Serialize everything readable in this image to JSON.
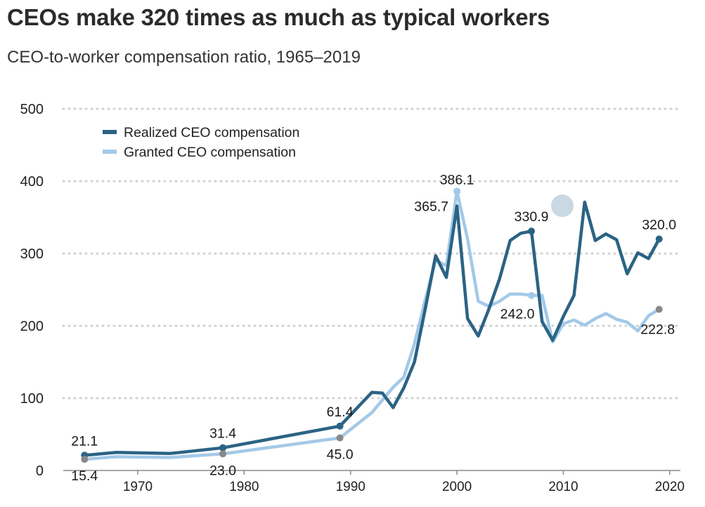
{
  "title": "CEOs make 320 times as much as typical workers",
  "subtitle": "CEO-to-worker compensation ratio, 1965–2019",
  "chart_data": {
    "type": "line",
    "ylim": [
      0,
      500
    ],
    "xlim": [
      1963,
      2021
    ],
    "y_ticks": [
      0,
      100,
      200,
      300,
      400,
      500
    ],
    "x_ticks": [
      1970,
      1980,
      1990,
      2000,
      2010,
      2020
    ],
    "grid": "horizontal dotted",
    "legend_position": "top-left",
    "colors": {
      "realized": "#2b6384",
      "granted": "#a3c9e8",
      "marker_gray": "#888888"
    },
    "series": [
      {
        "key": "realized",
        "name": "Realized CEO compensation",
        "points": [
          [
            1965,
            21.1
          ],
          [
            1968,
            25
          ],
          [
            1973,
            23.5
          ],
          [
            1978,
            31.4
          ],
          [
            1989,
            61.4
          ],
          [
            1992,
            108
          ],
          [
            1993,
            107
          ],
          [
            1994,
            87
          ],
          [
            1995,
            114
          ],
          [
            1996,
            150
          ],
          [
            1997,
            222
          ],
          [
            1998,
            297
          ],
          [
            1999,
            267
          ],
          [
            2000,
            365.7
          ],
          [
            2001,
            210
          ],
          [
            2002,
            186
          ],
          [
            2003,
            223
          ],
          [
            2004,
            265
          ],
          [
            2005,
            318
          ],
          [
            2006,
            328
          ],
          [
            2007,
            330.9
          ],
          [
            2008,
            206
          ],
          [
            2009,
            180
          ],
          [
            2010,
            213
          ],
          [
            2011,
            242
          ],
          [
            2012,
            371
          ],
          [
            2013,
            318
          ],
          [
            2014,
            327
          ],
          [
            2015,
            319
          ],
          [
            2016,
            272
          ],
          [
            2017,
            301
          ],
          [
            2018,
            293
          ],
          [
            2019,
            320.0
          ]
        ]
      },
      {
        "key": "granted",
        "name": "Granted CEO compensation",
        "points": [
          [
            1965,
            15.4
          ],
          [
            1968,
            19
          ],
          [
            1973,
            18
          ],
          [
            1978,
            23.0
          ],
          [
            1989,
            45.0
          ],
          [
            1992,
            80
          ],
          [
            1994,
            115
          ],
          [
            1995,
            129
          ],
          [
            1996,
            175
          ],
          [
            1997,
            235
          ],
          [
            1998,
            291
          ],
          [
            1999,
            283
          ],
          [
            2000,
            386.1
          ],
          [
            2001,
            320
          ],
          [
            2002,
            234
          ],
          [
            2003,
            227
          ],
          [
            2004,
            234
          ],
          [
            2005,
            244
          ],
          [
            2006,
            244
          ],
          [
            2007,
            242.0
          ],
          [
            2008,
            242
          ],
          [
            2009,
            178
          ],
          [
            2010,
            203
          ],
          [
            2011,
            208
          ],
          [
            2012,
            201
          ],
          [
            2013,
            210
          ],
          [
            2014,
            217
          ],
          [
            2015,
            209
          ],
          [
            2016,
            205
          ],
          [
            2017,
            193
          ],
          [
            2018,
            214
          ],
          [
            2019,
            222.8
          ]
        ]
      }
    ],
    "annotations": [
      {
        "x": 1965,
        "y": 21.1,
        "text": "21.1",
        "series": "realized",
        "marker": true,
        "pos": "above"
      },
      {
        "x": 1978,
        "y": 31.4,
        "text": "31.4",
        "series": "realized",
        "marker": true,
        "pos": "above"
      },
      {
        "x": 1989,
        "y": 61.4,
        "text": "61.4",
        "series": "realized",
        "marker": true,
        "pos": "above"
      },
      {
        "x": 2000,
        "y": 365.7,
        "text": "365.7",
        "series": "realized",
        "marker": false,
        "pos": "left"
      },
      {
        "x": 2007,
        "y": 330.9,
        "text": "330.9",
        "series": "realized",
        "marker": true,
        "pos": "above"
      },
      {
        "x": 2019,
        "y": 320.0,
        "text": "320.0",
        "series": "realized",
        "marker": true,
        "pos": "above"
      },
      {
        "x": 1965,
        "y": 15.4,
        "text": "15.4",
        "series": "granted",
        "marker": true,
        "pos": "below"
      },
      {
        "x": 1978,
        "y": 23.0,
        "text": "23.0",
        "series": "granted",
        "marker": true,
        "pos": "below"
      },
      {
        "x": 1989,
        "y": 45.0,
        "text": "45.0",
        "series": "granted",
        "marker": true,
        "pos": "below"
      },
      {
        "x": 2000,
        "y": 386.1,
        "text": "386.1",
        "series": "granted",
        "marker": true,
        "pos": "above"
      },
      {
        "x": 2007,
        "y": 242.0,
        "text": "242.0",
        "series": "granted",
        "marker": true,
        "pos": "below"
      },
      {
        "x": 2019,
        "y": 222.8,
        "text": "222.8",
        "series": "granted",
        "marker": true,
        "pos": "below"
      }
    ]
  }
}
